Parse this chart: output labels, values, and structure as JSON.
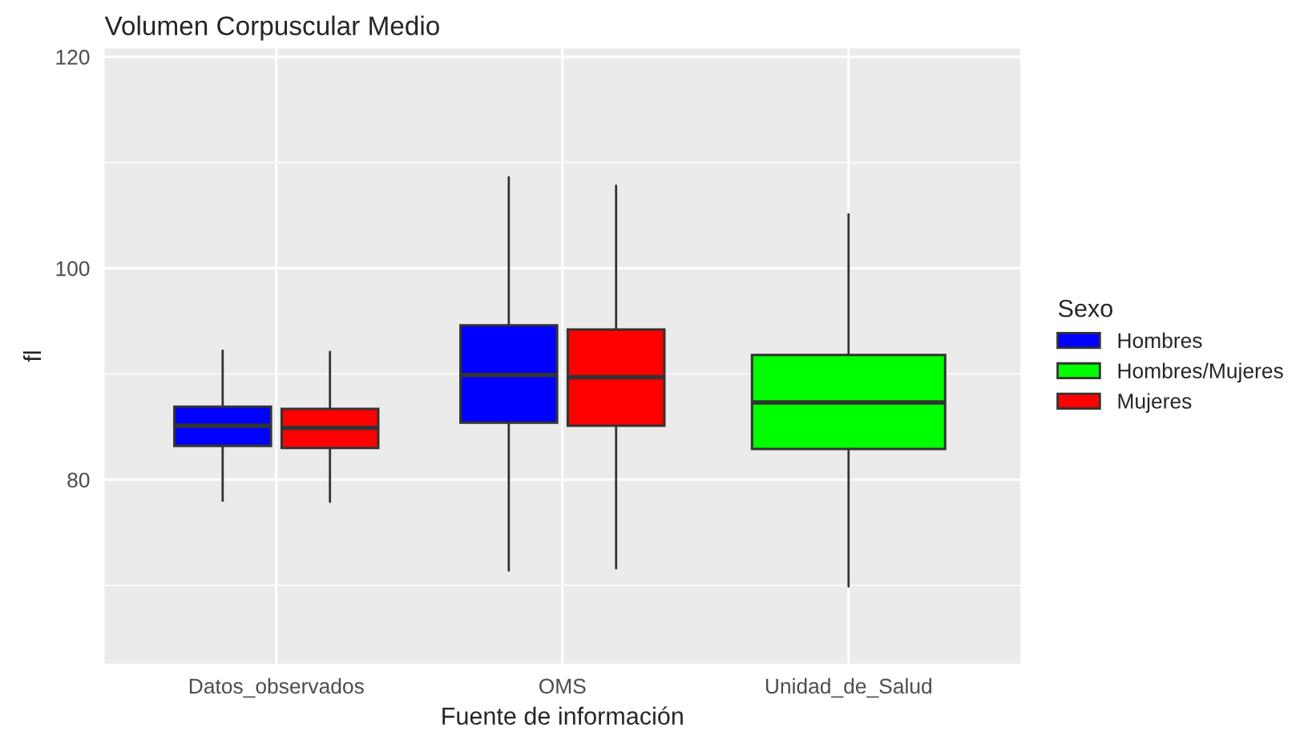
{
  "chart_data": {
    "type": "box",
    "title": "Volumen Corpuscular Medio",
    "xlabel": "Fuente de información",
    "ylabel": "fl",
    "legend_title": "Sexo",
    "categories": [
      "Datos_observados",
      "OMS",
      "Unidad_de_Salud"
    ],
    "series": [
      {
        "name": "Hombres",
        "color": "#0000ff",
        "boxes": [
          {
            "low": 78.0,
            "q1": 83.2,
            "median": 85.1,
            "q3": 86.9,
            "high": 92.2
          },
          {
            "low": 71.4,
            "q1": 85.4,
            "median": 89.9,
            "q3": 94.6,
            "high": 108.6
          },
          null
        ]
      },
      {
        "name": "Hombres/Mujeres",
        "color": "#00ff00",
        "boxes": [
          null,
          null,
          {
            "low": 69.9,
            "q1": 82.9,
            "median": 87.3,
            "q3": 91.8,
            "high": 105.1
          }
        ]
      },
      {
        "name": "Mujeres",
        "color": "#ff0000",
        "boxes": [
          {
            "low": 77.9,
            "q1": 83.0,
            "median": 84.9,
            "q3": 86.7,
            "high": 92.1
          },
          {
            "low": 71.6,
            "q1": 85.1,
            "median": 89.7,
            "q3": 94.2,
            "high": 107.8
          },
          null
        ]
      }
    ],
    "ylim": [
      62.6,
      120.8
    ],
    "yticks": [
      80,
      100,
      120
    ],
    "grid": true,
    "legend": "right"
  }
}
